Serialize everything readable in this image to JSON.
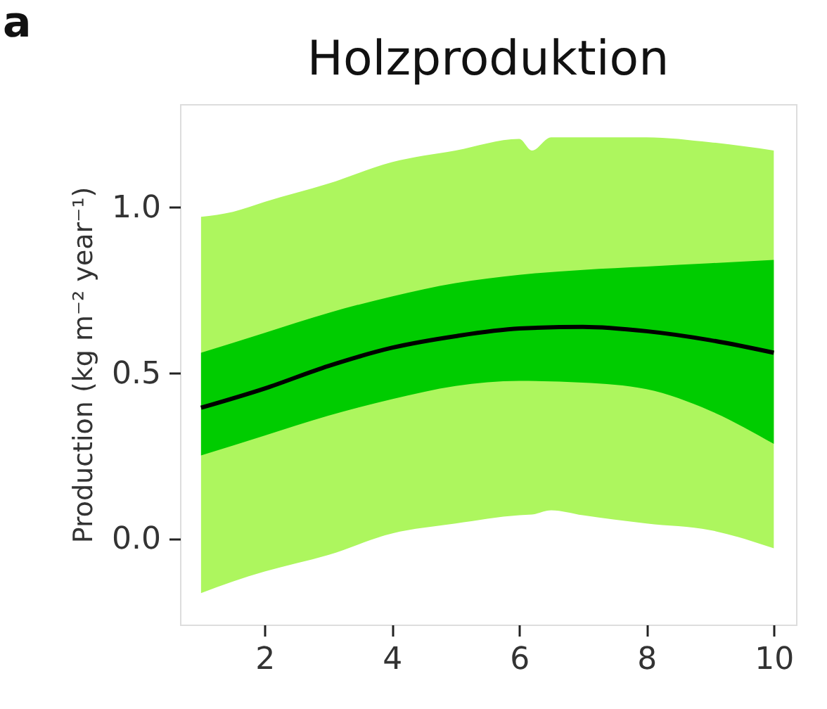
{
  "chart_data": {
    "type": "line",
    "title": "Holzproduktion",
    "ylabel": "Production (kg m⁻² year⁻¹)",
    "annotations": [
      "a"
    ],
    "xlim": [
      0.67,
      10.35
    ],
    "xticks": [
      2,
      4,
      6,
      8,
      10
    ],
    "ylim": [
      -0.26,
      1.31
    ],
    "yticks": [
      {
        "value": 0,
        "label": "0.0"
      },
      {
        "value": 0.5,
        "label": "0.5"
      },
      {
        "value": 1,
        "label": "1.0"
      }
    ],
    "grid": false,
    "marker": "none",
    "line_style": "solid",
    "series": [
      {
        "type": "area",
        "color": "#adf65e",
        "x": [
          1,
          1.5,
          2,
          3,
          4,
          5,
          6,
          6.2,
          6.5,
          7,
          8,
          9,
          10
        ],
        "values": [
          null,
          null,
          null,
          null,
          null,
          null,
          null,
          null,
          null,
          null,
          null,
          null,
          null
        ],
        "lower": [
          -0.165,
          -0.13,
          -0.1,
          -0.05,
          0.015,
          0.045,
          0.07,
          0.072,
          0.085,
          0.07,
          0.045,
          0.025,
          -0.03
        ],
        "upper": [
          0.97,
          0.985,
          1.015,
          1.07,
          1.135,
          1.17,
          1.205,
          1.17,
          1.21,
          1.21,
          1.21,
          1.195,
          1.17
        ]
      },
      {
        "type": "area",
        "color": "#00cc00",
        "x": [
          1,
          2,
          3,
          4,
          5,
          6,
          7,
          8,
          9,
          10
        ],
        "values": [
          null,
          null,
          null,
          null,
          null,
          null,
          null,
          null,
          null,
          null
        ],
        "lower": [
          0.25,
          0.31,
          0.37,
          0.42,
          0.46,
          0.475,
          0.47,
          0.45,
          0.385,
          0.285
        ],
        "upper": [
          0.56,
          0.62,
          0.68,
          0.73,
          0.77,
          0.795,
          0.81,
          0.82,
          0.83,
          0.84
        ]
      },
      {
        "color": "#000000",
        "x": [
          1,
          2,
          3,
          4,
          5,
          6,
          7,
          8,
          9,
          10
        ],
        "values": [
          0.394,
          0.452,
          0.52,
          0.575,
          0.61,
          0.633,
          0.638,
          0.625,
          0.598,
          0.56
        ]
      }
    ]
  }
}
